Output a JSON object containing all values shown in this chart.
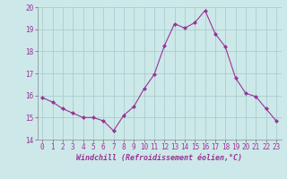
{
  "x": [
    0,
    1,
    2,
    3,
    4,
    5,
    6,
    7,
    8,
    9,
    10,
    11,
    12,
    13,
    14,
    15,
    16,
    17,
    18,
    19,
    20,
    21,
    22,
    23
  ],
  "y": [
    15.9,
    15.7,
    15.4,
    15.2,
    15.0,
    15.0,
    14.85,
    14.4,
    15.1,
    15.5,
    16.3,
    16.95,
    18.25,
    19.25,
    19.05,
    19.3,
    19.85,
    18.8,
    18.2,
    16.8,
    16.1,
    15.95,
    15.4,
    14.85
  ],
  "line_color": "#993399",
  "marker": "D",
  "marker_size": 2,
  "bg_color": "#cce8e8",
  "grid_color": "#aacece",
  "xlabel": "Windchill (Refroidissement éolien,°C)",
  "ylim": [
    14.0,
    20.0
  ],
  "xlim_min": -0.5,
  "xlim_max": 23.5,
  "yticks": [
    14,
    15,
    16,
    17,
    18,
    19,
    20
  ],
  "xticks": [
    0,
    1,
    2,
    3,
    4,
    5,
    6,
    7,
    8,
    9,
    10,
    11,
    12,
    13,
    14,
    15,
    16,
    17,
    18,
    19,
    20,
    21,
    22,
    23
  ],
  "tick_fontsize": 5.5,
  "xlabel_fontsize": 6.0,
  "linewidth": 0.8
}
